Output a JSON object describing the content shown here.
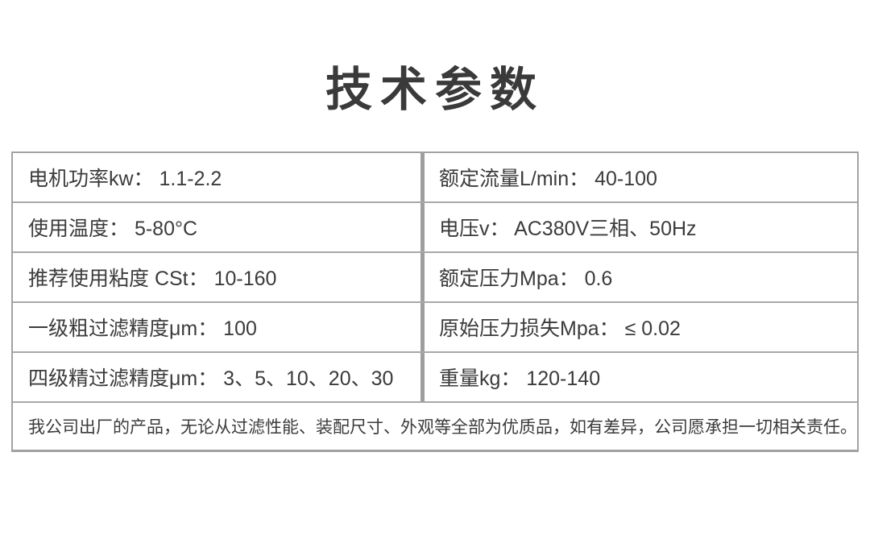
{
  "page": {
    "title": "技术参数"
  },
  "colors": {
    "background": "#ffffff",
    "text": "#3b3b3b",
    "border": "#a2a2a2",
    "divider": "#9e9e9e"
  },
  "table": {
    "rows": [
      {
        "cells": [
          "电机功率kw： 1.1-2.2",
          "额定流量L/min： 40-100"
        ]
      },
      {
        "cells": [
          "使用温度： 5-80°C",
          "电压v： AC380V三相、50Hz"
        ]
      },
      {
        "cells": [
          "推荐使用粘度 CSt： 10-160",
          "额定压力Mpa： 0.6"
        ]
      },
      {
        "cells": [
          "一级粗过滤精度μm： 100",
          "原始压力损失Mpa： ≤ 0.02"
        ]
      },
      {
        "cells": [
          "四级精过滤精度μm： 3、5、10、20、30",
          "重量kg： 120-140"
        ]
      }
    ],
    "footer": "我公司出厂的产品，无论从过滤性能、装配尺寸、外观等全部为优质品，如有差异，公司愿承担一切相关责任。"
  }
}
